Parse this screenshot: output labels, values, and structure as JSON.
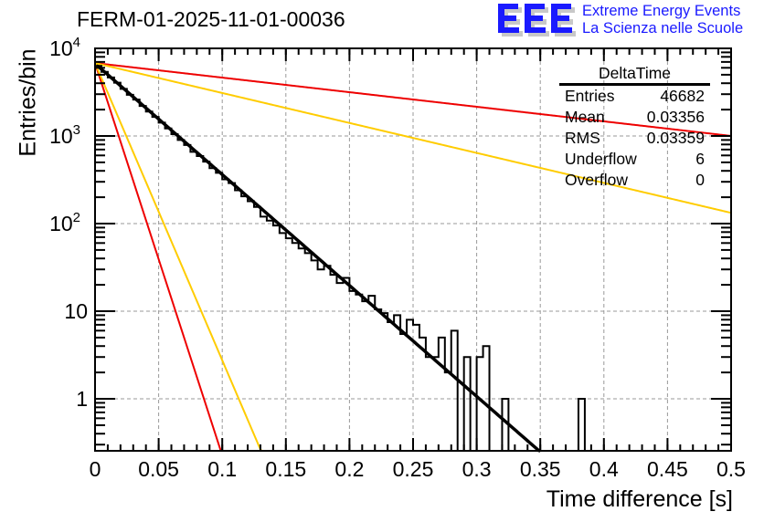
{
  "title": "FERM-01-2025-11-01-00036",
  "logo": {
    "mark": "EEE",
    "line1": "Extreme Energy Events",
    "line2": "La Scienza nelle Scuole",
    "color": "#1a1aff"
  },
  "stats_box": {
    "name": "DeltaTime",
    "rows": [
      {
        "label": "Entries",
        "value": "46682"
      },
      {
        "label": "Mean",
        "value": "0.03356"
      },
      {
        "label": "RMS",
        "value": "0.03359"
      },
      {
        "label": "Underflow",
        "value": "6"
      },
      {
        "label": "Overflow",
        "value": "0"
      }
    ]
  },
  "chart_data": {
    "type": "histogram",
    "title": "FERM-01-2025-11-01-00036",
    "xlabel": "Time difference [s]",
    "ylabel": "Entries/bin",
    "xlim": [
      0,
      0.5
    ],
    "ylim": [
      0.255,
      10000
    ],
    "yscale": "log",
    "grid": true,
    "xticks": [
      "0",
      "0.05",
      "0.1",
      "0.15",
      "0.2",
      "0.25",
      "0.3",
      "0.35",
      "0.4",
      "0.45",
      "0.5"
    ],
    "yticks": [
      {
        "value": 1,
        "label": "1"
      },
      {
        "value": 10,
        "label": "10"
      },
      {
        "value": 100,
        "label": "10^2"
      },
      {
        "value": 1000,
        "label": "10^3"
      },
      {
        "value": 10000,
        "label": "10^4"
      }
    ],
    "bin_width": 0.005,
    "histogram": {
      "name": "DeltaTime",
      "color": "#000000",
      "counts": [
        6300,
        5400,
        4650,
        4050,
        3450,
        2950,
        2600,
        2200,
        1900,
        1650,
        1420,
        1220,
        1050,
        900,
        790,
        660,
        590,
        510,
        430,
        380,
        320,
        290,
        240,
        205,
        180,
        155,
        120,
        108,
        95,
        78,
        68,
        60,
        52,
        46,
        38,
        30,
        33,
        26,
        21,
        24,
        17,
        15.5,
        13,
        15,
        10.5,
        9.5,
        7.5,
        9,
        5.5,
        8,
        7,
        5,
        3,
        3,
        5,
        2,
        6,
        0,
        3,
        0.1,
        3,
        4,
        0.1,
        0.1,
        1,
        0.1,
        0.1,
        0.1,
        0.1,
        0.1,
        0.1,
        0.1,
        0.1,
        0.1,
        0.1,
        0.1,
        1,
        0.1,
        0.1,
        0.1,
        0.1,
        0.1,
        0.1,
        0.1,
        0.1,
        0.1,
        0.1,
        0.1,
        0.1,
        0.1,
        0.1,
        0.1,
        0.1,
        0.1,
        0.1,
        0.1,
        0.1,
        0.1,
        0.1,
        0.1
      ]
    },
    "series": [
      {
        "name": "fit",
        "color": "#000000",
        "type": "exponential",
        "A": 6700,
        "tau": 0.0343
      },
      {
        "name": "red-steep",
        "color": "#ee0000",
        "type": "exponential",
        "A": 6800,
        "tau": 0.0097
      },
      {
        "name": "yellow-steep",
        "color": "#ffcc00",
        "type": "exponential",
        "A": 6800,
        "tau": 0.0128
      },
      {
        "name": "red-shallow",
        "color": "#ee0000",
        "type": "exponential",
        "A": 6800,
        "tau": 0.261
      },
      {
        "name": "yellow-shallow",
        "color": "#ffcc00",
        "type": "exponential",
        "A": 6800,
        "tau": 0.127
      }
    ]
  }
}
